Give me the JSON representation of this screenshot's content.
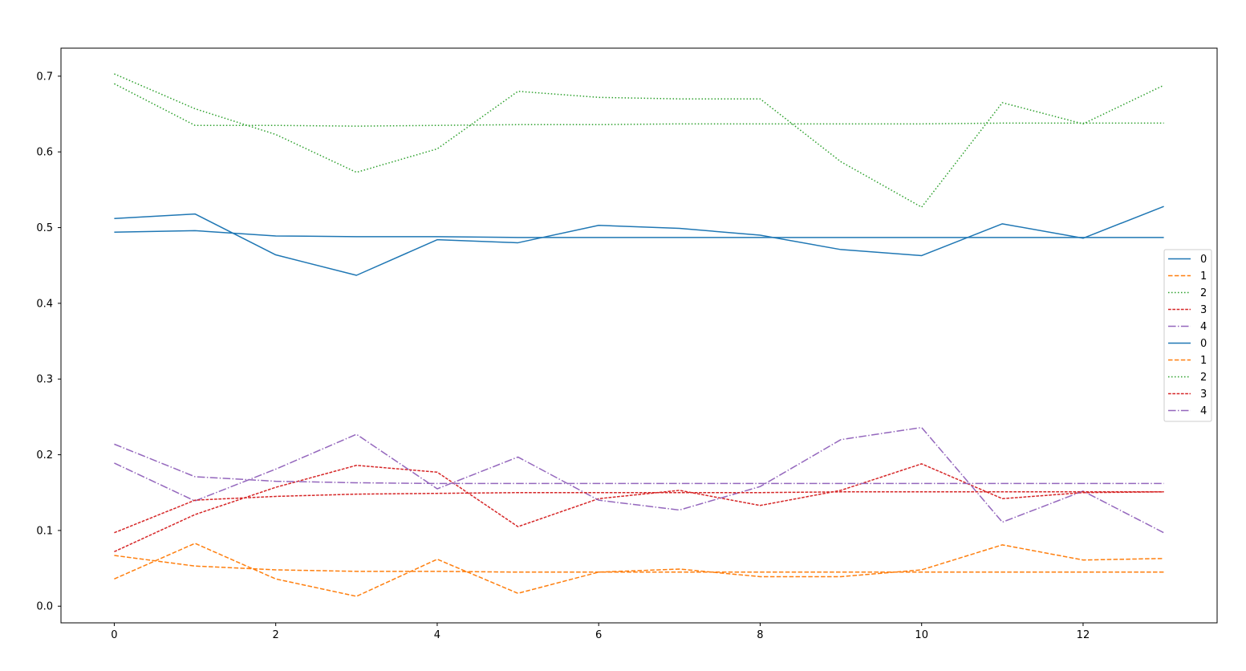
{
  "chart_data": {
    "type": "line",
    "title": "",
    "xlabel": "",
    "ylabel": "",
    "xlim": [
      -0.66,
      13.66
    ],
    "ylim": [
      -0.022,
      0.737
    ],
    "xticks": [
      0,
      2,
      4,
      6,
      8,
      10,
      12
    ],
    "yticks": [
      0.0,
      0.1,
      0.2,
      0.3,
      0.4,
      0.5,
      0.6,
      0.7
    ],
    "grid": false,
    "legend_position": "right",
    "x": [
      0,
      1,
      2,
      3,
      4,
      5,
      6,
      7,
      8,
      9,
      10,
      11,
      12,
      13
    ],
    "series": [
      {
        "name": "0",
        "color": "#1f77b4",
        "dash": "solid",
        "values": [
          0.512,
          0.518,
          0.464,
          0.437,
          0.484,
          0.48,
          0.503,
          0.499,
          0.49,
          0.471,
          0.463,
          0.505,
          0.486,
          0.528
        ]
      },
      {
        "name": "1",
        "color": "#ff7f0e",
        "dash": "dashed",
        "values": [
          0.036,
          0.083,
          0.036,
          0.013,
          0.062,
          0.017,
          0.045,
          0.049,
          0.039,
          0.039,
          0.048,
          0.081,
          0.061,
          0.063
        ]
      },
      {
        "name": "2",
        "color": "#2ca02c",
        "dash": "dotted",
        "values": [
          0.703,
          0.657,
          0.623,
          0.573,
          0.604,
          0.68,
          0.672,
          0.67,
          0.67,
          0.587,
          0.527,
          0.665,
          0.637,
          0.688
        ]
      },
      {
        "name": "3",
        "color": "#d62728",
        "dash": "dashdash",
        "values": [
          0.072,
          0.121,
          0.157,
          0.186,
          0.177,
          0.105,
          0.142,
          0.153,
          0.133,
          0.153,
          0.188,
          0.142,
          0.15,
          0.151
        ]
      },
      {
        "name": "4",
        "color": "#9467bd",
        "dash": "dashdot",
        "values": [
          0.189,
          0.139,
          0.181,
          0.227,
          0.155,
          0.197,
          0.14,
          0.127,
          0.158,
          0.22,
          0.236,
          0.111,
          0.152,
          0.097
        ]
      },
      {
        "name": "0",
        "color": "#1f77b4",
        "dash": "solid",
        "values": [
          0.494,
          0.496,
          0.489,
          0.488,
          0.488,
          0.487,
          0.487,
          0.487,
          0.487,
          0.487,
          0.487,
          0.487,
          0.487,
          0.487
        ]
      },
      {
        "name": "1",
        "color": "#ff7f0e",
        "dash": "dashed",
        "values": [
          0.067,
          0.053,
          0.048,
          0.046,
          0.046,
          0.045,
          0.045,
          0.045,
          0.045,
          0.045,
          0.045,
          0.045,
          0.045,
          0.045
        ]
      },
      {
        "name": "2",
        "color": "#2ca02c",
        "dash": "dotted",
        "values": [
          0.69,
          0.635,
          0.635,
          0.634,
          0.635,
          0.636,
          0.636,
          0.637,
          0.637,
          0.637,
          0.637,
          0.638,
          0.638,
          0.638
        ]
      },
      {
        "name": "3",
        "color": "#d62728",
        "dash": "dashdash",
        "values": [
          0.097,
          0.14,
          0.145,
          0.148,
          0.149,
          0.15,
          0.15,
          0.15,
          0.15,
          0.151,
          0.151,
          0.151,
          0.151,
          0.151
        ]
      },
      {
        "name": "4",
        "color": "#9467bd",
        "dash": "dashdot",
        "values": [
          0.214,
          0.171,
          0.165,
          0.163,
          0.162,
          0.162,
          0.162,
          0.162,
          0.162,
          0.162,
          0.162,
          0.162,
          0.162,
          0.162
        ]
      }
    ]
  }
}
